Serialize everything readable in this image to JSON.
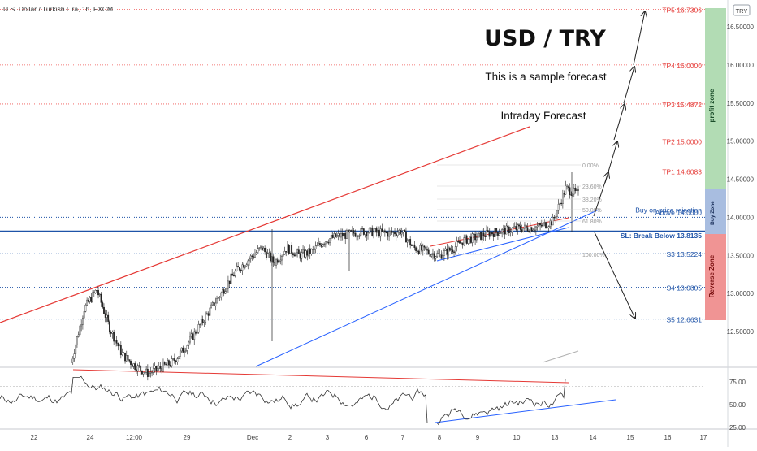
{
  "chart_data": {
    "type": "candlestick",
    "title": "U.S. Dollar / Turkish Lira, 1h, FXCM",
    "currency_badge": "TRY",
    "headline": "USD / TRY",
    "subtitle": "This is a sample forecast",
    "annotation": "Intraday Forecast",
    "y_axis": {
      "ticks": [
        "16.50000",
        "16.00000",
        "15.50000",
        "15.00000",
        "14.50000",
        "14.00000",
        "13.50000",
        "13.00000",
        "12.50000"
      ],
      "range": [
        12.0,
        16.85
      ]
    },
    "x_axis": {
      "ticks": [
        "22",
        "24",
        "12:00",
        "29",
        "Dec",
        "2",
        "3",
        "6",
        "7",
        "8",
        "9",
        "10",
        "13",
        "14",
        "15",
        "16",
        "17"
      ]
    },
    "price_levels": [
      {
        "label": "TP5 16.7306",
        "value": 16.7306,
        "color": "#e53935"
      },
      {
        "label": "TP4 16.0000",
        "value": 16.0,
        "color": "#e53935"
      },
      {
        "label": "TP3 15.4872",
        "value": 15.4872,
        "color": "#e53935"
      },
      {
        "label": "TP2 15.0000",
        "value": 15.0,
        "color": "#e53935"
      },
      {
        "label": "TP1 14.6083",
        "value": 14.6083,
        "color": "#e53935"
      },
      {
        "label": "Buy on price rejection",
        "value": 14.05,
        "color": "#1e53a8"
      },
      {
        "label": "Above 14.0000",
        "value": 14.0,
        "color": "#1e53a8"
      },
      {
        "label": "SL: Break Below 13.8135",
        "value": 13.8135,
        "color": "#1e53a8"
      },
      {
        "label": "S3 13.5224",
        "value": 13.5224,
        "color": "#1e53a8"
      },
      {
        "label": "S4 13.0805",
        "value": 13.0805,
        "color": "#1e53a8"
      },
      {
        "label": "S5 12.6631",
        "value": 12.6631,
        "color": "#1e53a8"
      }
    ],
    "fib_levels": [
      "0.00%",
      "23.60%",
      "38.20%",
      "50.00%",
      "61.80%",
      "100.00%"
    ],
    "zones": [
      {
        "label": "profit zone",
        "color": "#9fd3a6"
      },
      {
        "label": "Buy Zone",
        "color": "#8aa8d8"
      },
      {
        "label": "Reverse Zone",
        "color": "#f08a8a"
      }
    ],
    "candles_close": [
      12.1,
      12.8,
      13.05,
      12.55,
      12.2,
      12.05,
      11.95,
      12.02,
      12.1,
      12.3,
      12.55,
      12.8,
      13.05,
      13.3,
      13.45,
      13.6,
      13.4,
      13.6,
      13.5,
      13.55,
      13.7,
      13.75,
      13.78,
      13.82,
      13.8,
      13.79,
      13.82,
      13.6,
      13.55,
      13.5,
      13.58,
      13.7,
      13.74,
      13.79,
      13.82,
      13.85,
      13.86,
      13.88,
      13.95,
      14.38,
      14.3
    ],
    "rsi": {
      "ticks": [
        "75.00",
        "50.00",
        "25.00"
      ],
      "range": [
        22,
        90
      ]
    }
  }
}
